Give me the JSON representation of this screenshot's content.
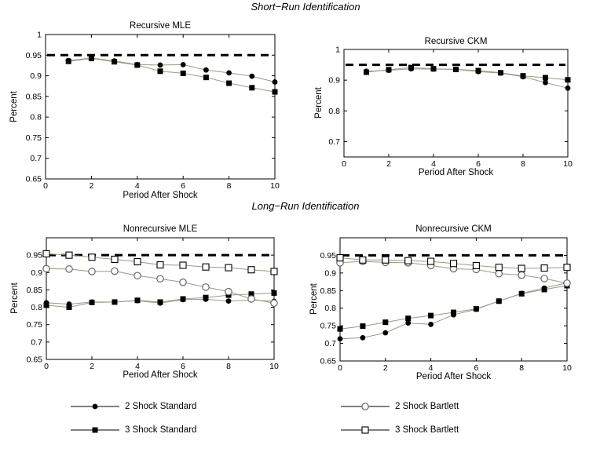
{
  "figure": {
    "short_run_title": "Short−Run Identification",
    "long_run_title": "Long−Run Identification"
  },
  "colors": {
    "axis": "#000000",
    "series_line": "#99998a",
    "dashed_line": "#000000",
    "open_marker_stroke": "#666666",
    "background": "#ffffff"
  },
  "chart_data": [
    {
      "id": "recursive-mle",
      "type": "line",
      "title": "Recursive MLE",
      "xlabel": "Period After Shock",
      "ylabel": "Percent",
      "xlim": [
        0,
        10
      ],
      "ylim": [
        0.65,
        1
      ],
      "xticks": [
        0,
        2,
        4,
        6,
        8,
        10
      ],
      "yticks": [
        0.65,
        0.7,
        0.75,
        0.8,
        0.85,
        0.9,
        0.95,
        1
      ],
      "grid": false,
      "dashed_line_y": 0.95,
      "x": [
        1,
        2,
        3,
        4,
        5,
        6,
        7,
        8,
        9,
        10
      ],
      "series": [
        {
          "name": "2 Shock Standard",
          "marker": "circle-filled",
          "values": [
            0.937,
            0.943,
            0.936,
            0.927,
            0.926,
            0.927,
            0.914,
            0.907,
            0.899,
            0.885
          ]
        },
        {
          "name": "3 Shock Standard",
          "marker": "square-filled",
          "values": [
            0.935,
            0.942,
            0.934,
            0.926,
            0.911,
            0.906,
            0.896,
            0.882,
            0.871,
            0.861
          ]
        }
      ]
    },
    {
      "id": "recursive-ckm",
      "type": "line",
      "title": "Recursive CKM",
      "xlabel": "Period After Shock",
      "ylabel": "Percent",
      "xlim": [
        0,
        10
      ],
      "ylim": [
        0.65,
        1
      ],
      "xticks": [
        0,
        2,
        4,
        6,
        8,
        10
      ],
      "yticks": [
        0.7,
        0.8,
        0.9,
        1
      ],
      "grid": false,
      "dashed_line_y": 0.95,
      "x": [
        1,
        2,
        3,
        4,
        5,
        6,
        7,
        8,
        9,
        10
      ],
      "series": [
        {
          "name": "2 Shock Standard",
          "marker": "circle-filled",
          "values": [
            0.929,
            0.932,
            0.937,
            0.936,
            0.935,
            0.928,
            0.923,
            0.911,
            0.892,
            0.874
          ]
        },
        {
          "name": "3 Shock Standard",
          "marker": "square-filled",
          "values": [
            0.926,
            0.934,
            0.941,
            0.937,
            0.935,
            0.931,
            0.924,
            0.914,
            0.908,
            0.901
          ]
        }
      ]
    },
    {
      "id": "nonrecursive-mle",
      "type": "line",
      "title": "Nonrecursive MLE",
      "xlabel": "Period After Shock",
      "ylabel": "Percent",
      "xlim": [
        0,
        10
      ],
      "ylim": [
        0.65,
        1
      ],
      "xticks": [
        0,
        2,
        4,
        6,
        8,
        10
      ],
      "yticks": [
        0.65,
        0.7,
        0.75,
        0.8,
        0.85,
        0.9,
        0.95
      ],
      "grid": false,
      "dashed_line_y": 0.95,
      "x": [
        0,
        1,
        2,
        3,
        4,
        5,
        6,
        7,
        8,
        9,
        10
      ],
      "series": [
        {
          "name": "2 Shock Standard",
          "marker": "circle-filled",
          "values": [
            0.813,
            0.809,
            0.815,
            0.815,
            0.819,
            0.812,
            0.822,
            0.823,
            0.818,
            0.821,
            0.817
          ]
        },
        {
          "name": "3 Shock Standard",
          "marker": "square-filled",
          "values": [
            0.806,
            0.8,
            0.814,
            0.815,
            0.82,
            0.815,
            0.824,
            0.828,
            0.835,
            0.838,
            0.841
          ]
        },
        {
          "name": "2 Shock Bartlett",
          "marker": "circle-open",
          "values": [
            0.911,
            0.91,
            0.903,
            0.904,
            0.891,
            0.882,
            0.872,
            0.858,
            0.845,
            0.824,
            0.812
          ]
        },
        {
          "name": "3 Shock Bartlett",
          "marker": "square-open",
          "values": [
            0.954,
            0.95,
            0.944,
            0.938,
            0.931,
            0.922,
            0.921,
            0.916,
            0.914,
            0.908,
            0.903
          ]
        }
      ]
    },
    {
      "id": "nonrecursive-ckm",
      "type": "line",
      "title": "Nonrecursive CKM",
      "xlabel": "Period After Shock",
      "ylabel": "Percent",
      "xlim": [
        0,
        10
      ],
      "ylim": [
        0.65,
        1
      ],
      "xticks": [
        0,
        2,
        4,
        6,
        8,
        10
      ],
      "yticks": [
        0.65,
        0.7,
        0.75,
        0.8,
        0.85,
        0.9,
        0.95
      ],
      "grid": false,
      "dashed_line_y": 0.95,
      "x": [
        0,
        1,
        2,
        3,
        4,
        5,
        6,
        7,
        8,
        9,
        10
      ],
      "series": [
        {
          "name": "2 Shock Standard",
          "marker": "circle-filled",
          "values": [
            0.713,
            0.716,
            0.73,
            0.758,
            0.754,
            0.781,
            0.797,
            0.82,
            0.842,
            0.857,
            0.872
          ]
        },
        {
          "name": "3 Shock Standard",
          "marker": "square-filled",
          "values": [
            0.741,
            0.749,
            0.76,
            0.771,
            0.779,
            0.788,
            0.798,
            0.82,
            0.841,
            0.853,
            0.864
          ]
        },
        {
          "name": "2 Shock Bartlett",
          "marker": "circle-open",
          "values": [
            0.929,
            0.933,
            0.93,
            0.929,
            0.921,
            0.912,
            0.91,
            0.898,
            0.894,
            0.884,
            0.871
          ]
        },
        {
          "name": "3 Shock Bartlett",
          "marker": "square-open",
          "values": [
            0.943,
            0.937,
            0.937,
            0.935,
            0.933,
            0.927,
            0.921,
            0.916,
            0.913,
            0.914,
            0.916
          ]
        }
      ]
    }
  ],
  "legend": {
    "items": [
      {
        "label": "2 Shock Standard",
        "marker": "circle-filled"
      },
      {
        "label": "3 Shock Standard",
        "marker": "square-filled"
      },
      {
        "label": "2 Shock Bartlett",
        "marker": "circle-open"
      },
      {
        "label": "3 Shock Bartlett",
        "marker": "square-open"
      }
    ]
  }
}
